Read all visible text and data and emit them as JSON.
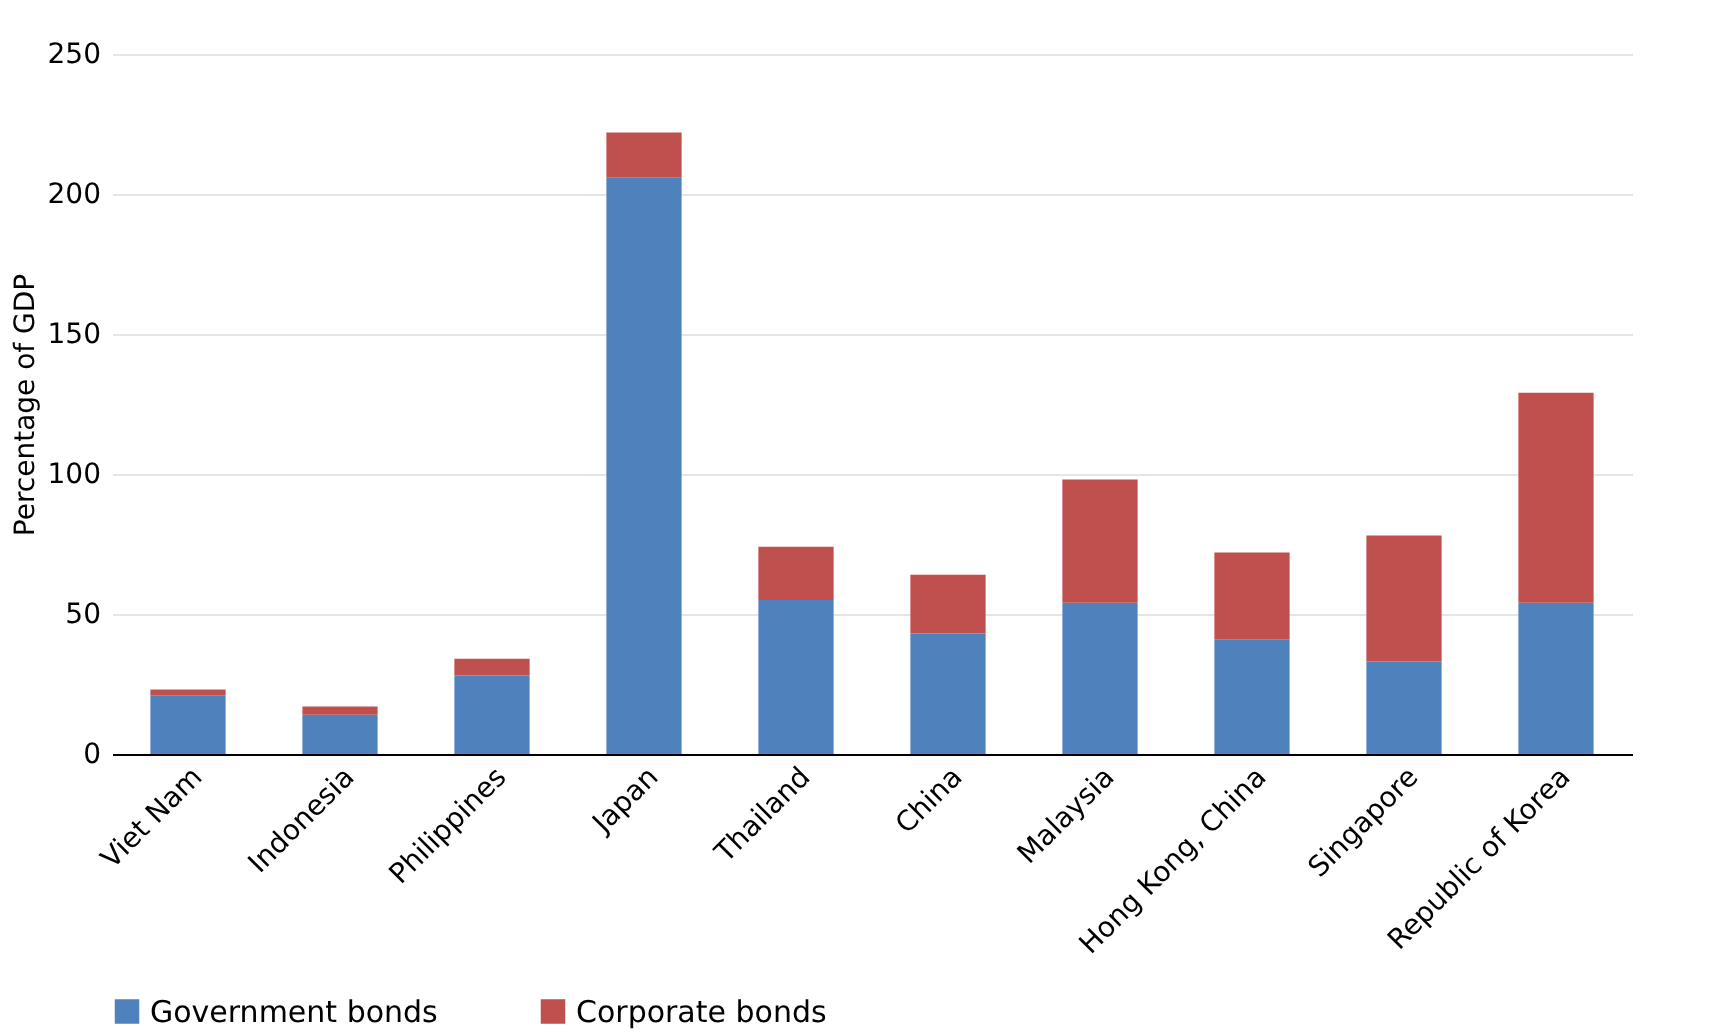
{
  "chart_data": {
    "type": "bar",
    "stacked": true,
    "ylabel": "Percentage of GDP",
    "categories": [
      "Viet Nam",
      "Indonesia",
      "Philippines",
      "Japan",
      "Thailand",
      "China",
      "Malaysia",
      "Hong Kong, China",
      "Singapore",
      "Republic of Korea"
    ],
    "series": [
      {
        "name": "Government bonds",
        "color": "#4f81bd",
        "values": [
          21,
          14,
          28,
          206,
          55,
          43,
          54,
          41,
          33,
          54
        ]
      },
      {
        "name": "Corporate bonds",
        "color": "#c0504d",
        "values": [
          2,
          3,
          6,
          16,
          19,
          21,
          44,
          31,
          45,
          75
        ]
      }
    ],
    "ylim": [
      0,
      250
    ],
    "yticks": [
      0,
      50,
      100,
      150,
      200,
      250
    ],
    "grid": "y",
    "legend": "bottom"
  }
}
